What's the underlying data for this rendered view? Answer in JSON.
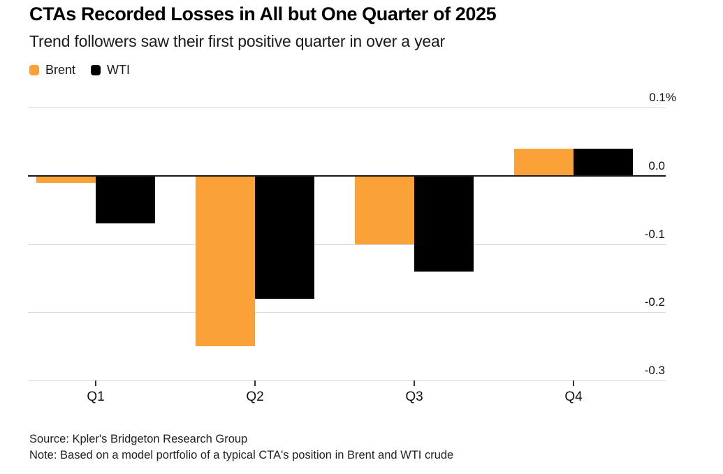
{
  "header": {
    "title": "CTAs Recorded Losses in All but One Quarter of 2025",
    "subtitle": "Trend followers saw their first positive quarter in over a year"
  },
  "legend": [
    {
      "label": "Brent",
      "color": "#FAA238"
    },
    {
      "label": "WTI",
      "color": "#000000"
    }
  ],
  "chart_data": {
    "type": "bar",
    "title": "CTAs Recorded Losses in All but One Quarter of 2025",
    "subtitle": "Trend followers saw their first positive quarter in over a year",
    "categories": [
      "Q1",
      "Q2",
      "Q3",
      "Q4"
    ],
    "series": [
      {
        "name": "Brent",
        "color": "#FAA238",
        "values": [
          -0.01,
          -0.25,
          -0.1,
          0.04
        ]
      },
      {
        "name": "WTI",
        "color": "#000000",
        "values": [
          -0.07,
          -0.18,
          -0.14,
          0.04
        ]
      }
    ],
    "unit": "%",
    "xlabel": "",
    "ylabel": "",
    "ylim": [
      -0.3,
      0.1
    ],
    "y_ticks": [
      {
        "value": 0.1,
        "label": "0.1%"
      },
      {
        "value": 0.0,
        "label": "0.0"
      },
      {
        "value": -0.1,
        "label": "-0.1"
      },
      {
        "value": -0.2,
        "label": "-0.2"
      },
      {
        "value": -0.3,
        "label": "-0.3"
      }
    ],
    "grid": "horizontal",
    "legend_position": "top-left"
  },
  "footer": {
    "source": "Source: Kpler's Bridgeton Research Group",
    "note": "Note: Based on a model portfolio of a typical CTA's position in Brent and WTI crude"
  },
  "colors": {
    "gridline": "#D8D8D8",
    "zero_line": "#1A1A1A",
    "tick": "#333333",
    "text": "#111111"
  }
}
